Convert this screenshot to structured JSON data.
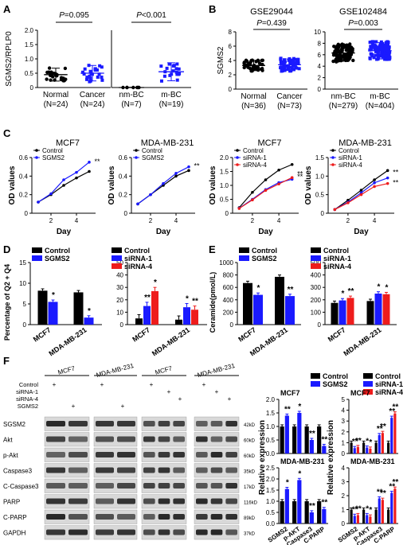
{
  "panel_letters": [
    "A",
    "B",
    "C",
    "D",
    "E",
    "F"
  ],
  "panel_A": {
    "ylabel": "SGMS2/RPLP0",
    "left": {
      "pvalue": "P=0.095",
      "groups": [
        {
          "name": "Normal",
          "n": "(N=24)",
          "color": "#000000"
        },
        {
          "name": "Cancer",
          "n": "(N=24)",
          "color": "#1a1aff"
        }
      ],
      "ylim": [
        0,
        2.0
      ],
      "yticks": [
        "0",
        "0.5",
        "1.0",
        "1.5",
        "2.0"
      ],
      "means": [
        0.45,
        0.5
      ]
    },
    "right": {
      "pvalue": "P<0.001",
      "groups": [
        {
          "name": "nm-BC",
          "n": "(N=7)",
          "color": "#000000"
        },
        {
          "name": "m-BC",
          "n": "(N=19)",
          "color": "#1a1aff"
        }
      ],
      "means": [
        0.0,
        0.55
      ]
    }
  },
  "panel_B": {
    "ylabel": "SGMS2",
    "left": {
      "title": "GSE29044",
      "pvalue": "P=0.439",
      "groups": [
        {
          "name": "Normal",
          "n": "(N=36)",
          "color": "#000000"
        },
        {
          "name": "Cancer",
          "n": "(N=73)",
          "color": "#1a1aff"
        }
      ],
      "ylim": [
        0,
        8
      ],
      "yticks": [
        "0",
        "2",
        "4",
        "6",
        "8"
      ],
      "means": [
        3.3,
        3.4
      ]
    },
    "right": {
      "title": "GSE102484",
      "pvalue": "P=0.003",
      "groups": [
        {
          "name": "nm-BC",
          "n": "(N=279)",
          "color": "#000000"
        },
        {
          "name": "m-BC",
          "n": "(N=404)",
          "color": "#1a1aff"
        }
      ],
      "ylim": [
        0,
        10
      ],
      "yticks": [
        "0",
        "2",
        "4",
        "6",
        "8",
        "10"
      ],
      "means": [
        6.3,
        6.7
      ]
    }
  },
  "panel_C": {
    "ylabel": "OD values",
    "xlabel": "Day",
    "charts": [
      {
        "title": "MCF7",
        "yticks": [
          "0",
          "0.2",
          "0.4",
          "0.6"
        ],
        "ylim": [
          0,
          0.6
        ],
        "xticks": [
          "2",
          "4"
        ],
        "x": [
          1,
          2,
          3,
          4,
          5
        ],
        "legend": [
          "Control",
          "SGMS2"
        ],
        "series": [
          {
            "name": "Control",
            "color": "#000000",
            "values": [
              0.12,
              0.2,
              0.3,
              0.38,
              0.45
            ]
          },
          {
            "name": "SGMS2",
            "color": "#1a1aff",
            "values": [
              0.12,
              0.21,
              0.36,
              0.44,
              0.55
            ]
          }
        ],
        "sig": "**"
      },
      {
        "title": "MDA-MB-231",
        "yticks": [
          "0",
          "0.2",
          "0.4",
          "0.6"
        ],
        "ylim": [
          0,
          0.6
        ],
        "xticks": [
          "2",
          "4"
        ],
        "x": [
          1,
          2,
          3,
          4,
          5
        ],
        "legend": [
          "Control",
          "SGMS2"
        ],
        "series": [
          {
            "name": "Control",
            "color": "#000000",
            "values": [
              0.1,
              0.2,
              0.3,
              0.4,
              0.46
            ]
          },
          {
            "name": "SGMS2",
            "color": "#1a1aff",
            "values": [
              0.1,
              0.2,
              0.32,
              0.43,
              0.5
            ]
          }
        ],
        "sig": "**"
      },
      {
        "title": "MCF7",
        "yticks": [
          "0",
          "0.5",
          "1.0",
          "1.5",
          "2.0"
        ],
        "ylim": [
          0,
          2
        ],
        "xticks": [
          "2",
          "4"
        ],
        "x": [
          1,
          2,
          3,
          4,
          5
        ],
        "legend": [
          "Control",
          "siRNA-1",
          "siRNA-4"
        ],
        "series": [
          {
            "name": "Control",
            "color": "#000000",
            "values": [
              0.2,
              0.75,
              1.2,
              1.55,
              1.75
            ]
          },
          {
            "name": "siRNA-1",
            "color": "#1a1aff",
            "values": [
              0.18,
              0.5,
              0.85,
              1.1,
              1.22
            ]
          },
          {
            "name": "siRNA-4",
            "color": "#ee1c1c",
            "values": [
              0.17,
              0.48,
              0.82,
              1.05,
              1.28
            ]
          }
        ],
        "sig": "**"
      },
      {
        "title": "MDA-MB-231",
        "yticks": [
          "0",
          "0.5",
          "1.0",
          "1.5"
        ],
        "ylim": [
          0,
          1.5
        ],
        "xticks": [
          "2",
          "4"
        ],
        "x": [
          1,
          2,
          3,
          4,
          5
        ],
        "legend": [
          "Control",
          "siRNA-1",
          "siRNA-4"
        ],
        "series": [
          {
            "name": "Control",
            "color": "#000000",
            "values": [
              0.1,
              0.35,
              0.62,
              0.9,
              1.15
            ]
          },
          {
            "name": "siRNA-1",
            "color": "#1a1aff",
            "values": [
              0.1,
              0.3,
              0.55,
              0.82,
              0.95
            ]
          },
          {
            "name": "siRNA-4",
            "color": "#ee1c1c",
            "values": [
              0.1,
              0.28,
              0.5,
              0.72,
              0.8
            ]
          }
        ],
        "sig": "**"
      }
    ]
  },
  "panel_D": {
    "ylabel": "Percentage of Q2 + Q4",
    "left": {
      "yticks": [
        "0",
        "5",
        "10",
        "15"
      ],
      "ylim": [
        0,
        15
      ],
      "categories": [
        "MCF7",
        "MDA-MB-231"
      ],
      "legend": [
        "Control",
        "SGMS2"
      ],
      "colors": [
        "#000000",
        "#1a1aff"
      ],
      "values": [
        [
          8.2,
          5.5
        ],
        [
          7.8,
          1.7
        ]
      ],
      "sig": [
        [
          "",
          "*"
        ],
        [
          "",
          "*"
        ]
      ]
    },
    "right": {
      "yticks": [
        "0",
        "10",
        "20",
        "30",
        "40",
        "50"
      ],
      "ylim": [
        0,
        50
      ],
      "categories": [
        "MCF7",
        "MDA-MB-231"
      ],
      "legend": [
        "Control",
        "siRNA-1",
        "siRNA-4"
      ],
      "colors": [
        "#000000",
        "#1a1aff",
        "#ee1c1c"
      ],
      "values": [
        [
          5,
          15,
          27
        ],
        [
          4,
          14,
          12
        ]
      ],
      "sig": [
        [
          "",
          "**",
          "*"
        ],
        [
          "",
          "*",
          "**"
        ]
      ]
    }
  },
  "panel_E": {
    "ylabel": "Ceramide(pmol/L)",
    "left": {
      "yticks": [
        "0",
        "200",
        "400",
        "600",
        "800",
        "1000"
      ],
      "ylim": [
        0,
        1000
      ],
      "categories": [
        "MCF7",
        "MDA-MB-231"
      ],
      "legend": [
        "Control",
        "SGMS2"
      ],
      "colors": [
        "#000000",
        "#1a1aff"
      ],
      "values": [
        [
          670,
          480
        ],
        [
          770,
          460
        ]
      ],
      "sig": [
        [
          "",
          "*"
        ],
        [
          "",
          "**"
        ]
      ]
    },
    "right": {
      "yticks": [
        "0",
        "100",
        "200",
        "300",
        "400",
        "500"
      ],
      "ylim": [
        0,
        500
      ],
      "categories": [
        "MCF7",
        "MDA-MB-231"
      ],
      "legend": [
        "Control",
        "siRNA-1",
        "siRNA-4"
      ],
      "colors": [
        "#000000",
        "#1a1aff",
        "#ee1c1c"
      ],
      "values": [
        [
          175,
          195,
          215
        ],
        [
          190,
          250,
          245
        ]
      ],
      "sig": [
        [
          "",
          "*",
          "**"
        ],
        [
          "",
          "*",
          "*"
        ]
      ]
    }
  },
  "panel_F": {
    "blot": {
      "col_headers": [
        "MCF7",
        "MDA-MB-231",
        "MCF7",
        "MDA-MB-231"
      ],
      "condition_rows": [
        {
          "label": "Control",
          "marks": [
            "+",
            "",
            "+",
            "",
            "+",
            "",
            "",
            "+",
            "",
            ""
          ]
        },
        {
          "label": "siRNA-1",
          "marks": [
            "",
            "",
            "",
            "",
            "",
            "+",
            "",
            "",
            "+",
            ""
          ]
        },
        {
          "label": "siRNA-4",
          "marks": [
            "",
            "",
            "",
            "",
            "",
            "",
            "+",
            "",
            "",
            "+"
          ]
        },
        {
          "label": "SGMS2",
          "marks": [
            "",
            "+",
            "",
            "+",
            "",
            "",
            "",
            "",
            "",
            ""
          ]
        }
      ],
      "proteins": [
        {
          "name": "SGSM2",
          "kd": "42kD"
        },
        {
          "name": "Akt",
          "kd": "60kD"
        },
        {
          "name": "p-Akt",
          "kd": "60kD"
        },
        {
          "name": "Caspase3",
          "kd": "35kD"
        },
        {
          "name": "C-Caspase3",
          "kd": "17kD"
        },
        {
          "name": "PARP",
          "kd": "116kD"
        },
        {
          "name": "C-PARP",
          "kd": "89kD"
        },
        {
          "name": "GAPDH",
          "kd": "37kD"
        }
      ]
    },
    "ylabel": "Relative expression",
    "bars_left": {
      "legend": [
        "Control",
        "SGMS2"
      ],
      "colors": [
        "#000000",
        "#1a1aff"
      ],
      "categories": [
        "SGMS2",
        "p-AKT",
        "C-Caspase3",
        "C-PARP"
      ],
      "top": {
        "title": "MCF7",
        "yticks": [
          "0.0",
          "0.5",
          "1.0",
          "1.5",
          "2.0"
        ],
        "ylim": [
          0,
          2
        ],
        "values": [
          [
            1,
            1.4
          ],
          [
            1,
            1.5
          ],
          [
            1,
            0.5
          ],
          [
            1,
            0.28
          ]
        ],
        "sig": [
          "**",
          "*",
          "**",
          "**"
        ]
      },
      "bottom": {
        "title": "MDA-MB-231",
        "yticks": [
          "0.0",
          "0.5",
          "1.0",
          "1.5",
          "2.0",
          "2.5"
        ],
        "ylim": [
          0,
          2.5
        ],
        "values": [
          [
            1,
            1.55
          ],
          [
            1,
            1.95
          ],
          [
            1,
            0.5
          ],
          [
            1,
            0.65
          ]
        ],
        "sig": [
          "*",
          "*",
          "**",
          "**"
        ]
      }
    },
    "bars_right": {
      "legend": [
        "Control",
        "siRNA-1",
        "siRNA-4"
      ],
      "colors": [
        "#000000",
        "#1a1aff",
        "#ee1c1c"
      ],
      "categories": [
        "SGMS2",
        "p-AKT",
        "C-Caspase3",
        "C-PARP"
      ],
      "top": {
        "title": "MCF7",
        "yticks": [
          "0",
          "1",
          "2",
          "3",
          "4",
          "5"
        ],
        "ylim": [
          0,
          5
        ],
        "values": [
          [
            1,
            0.5,
            0.6
          ],
          [
            1,
            0.55,
            0.45
          ],
          [
            1,
            1.7,
            1.9
          ],
          [
            1,
            3.3,
            3.7
          ]
        ],
        "sig": [
          "**",
          "*",
          "**",
          "**"
        ]
      },
      "bottom": {
        "title": "MDA-MB-231",
        "yticks": [
          "0",
          "1",
          "2",
          "3",
          "4"
        ],
        "ylim": [
          0,
          4
        ],
        "values": [
          [
            1,
            0.55,
            0.6
          ],
          [
            1,
            0.6,
            0.5
          ],
          [
            1,
            1.8,
            1.7
          ],
          [
            1,
            2.2,
            2.5
          ]
        ],
        "sig": [
          "**",
          "*",
          "**",
          "**"
        ]
      }
    }
  }
}
